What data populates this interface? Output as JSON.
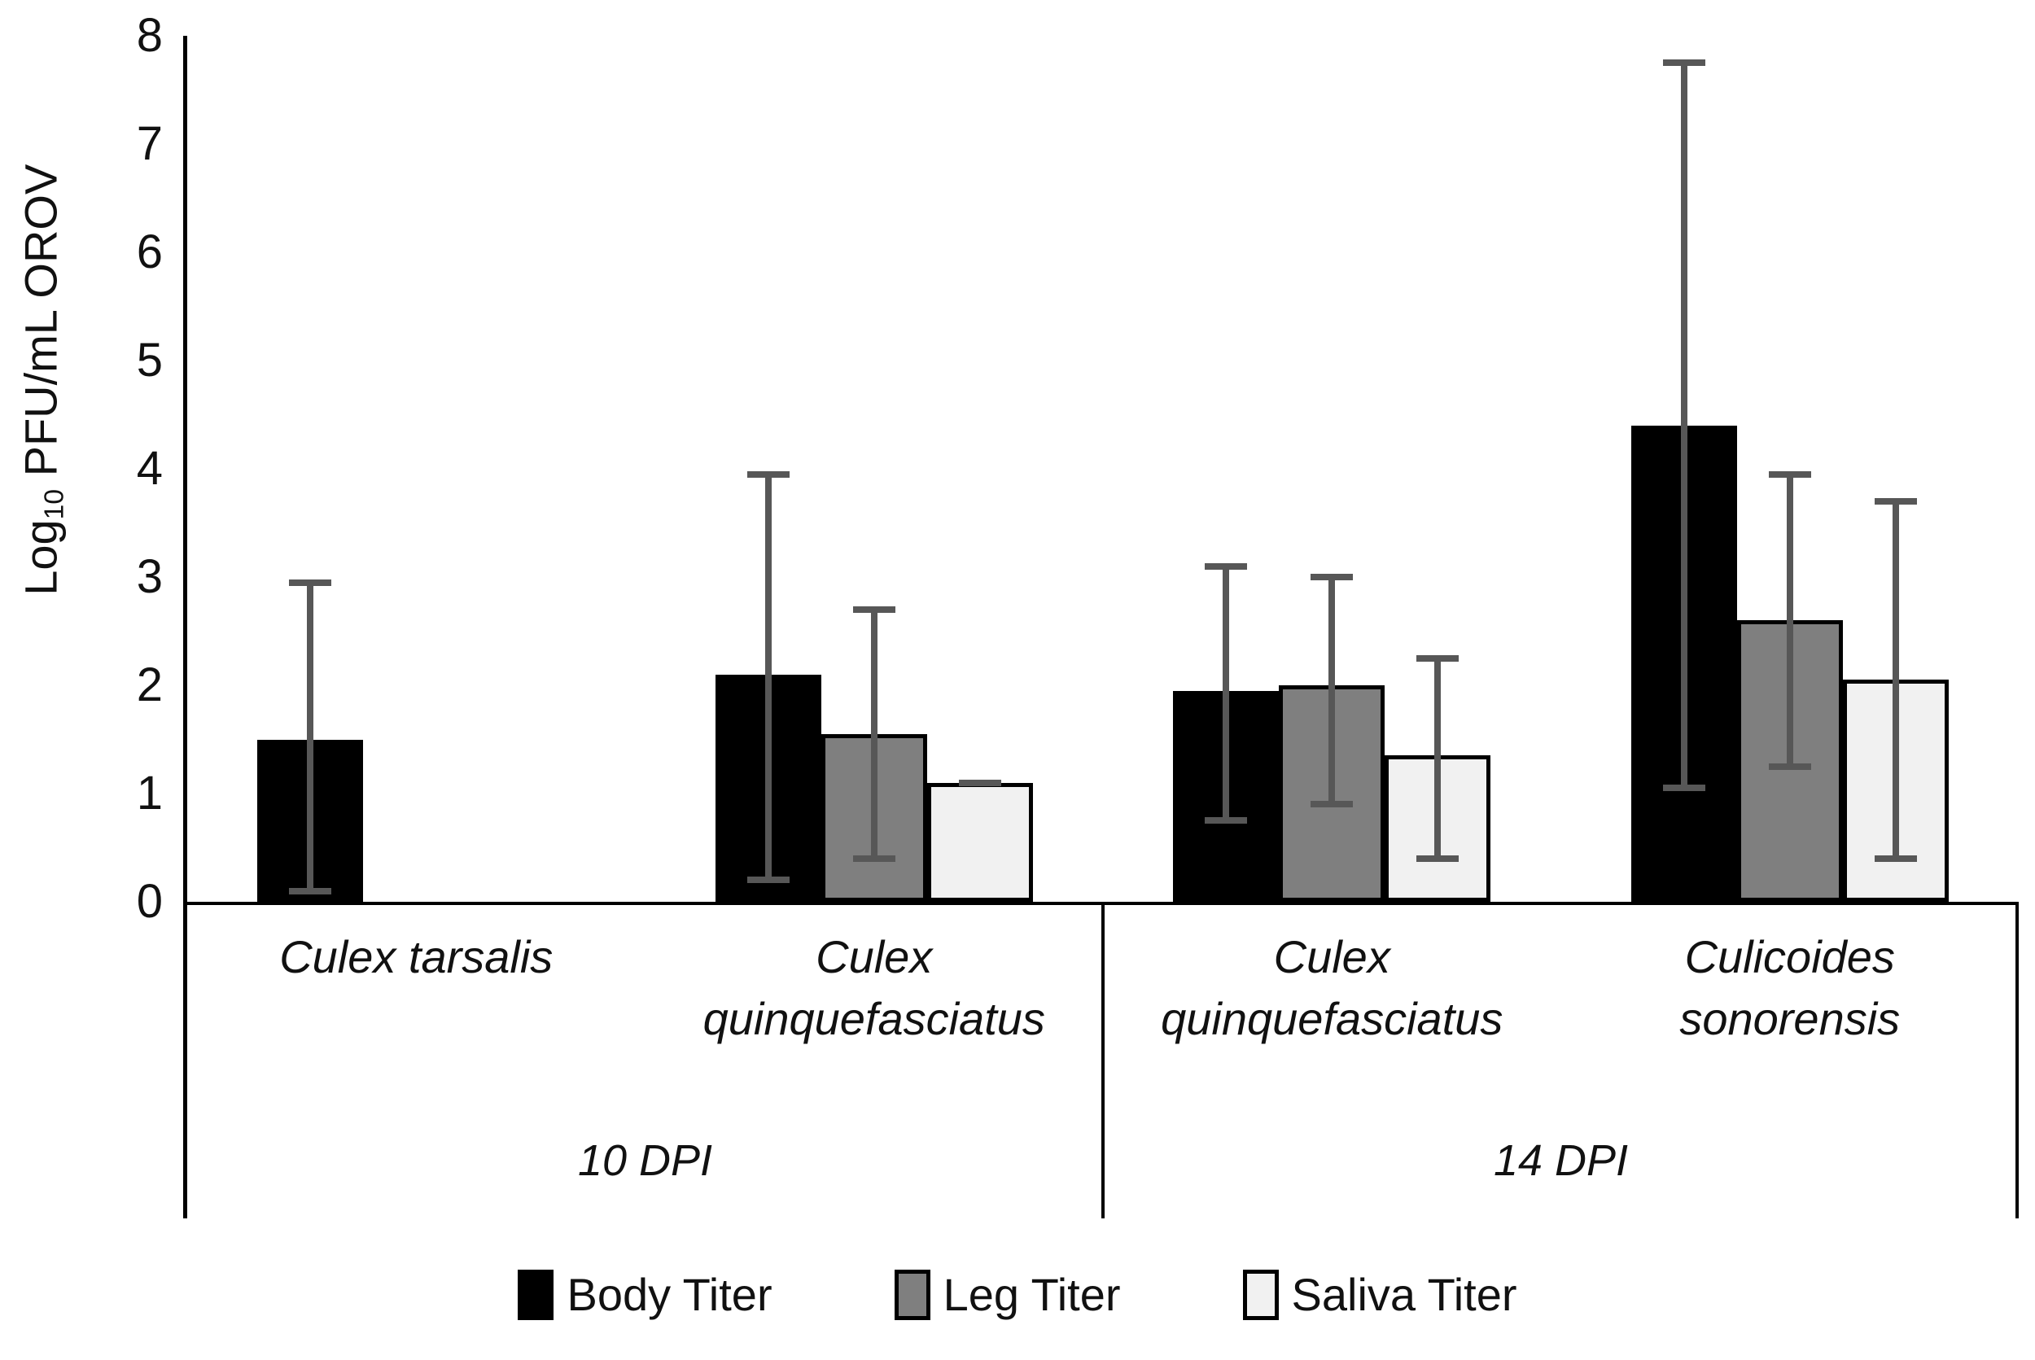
{
  "figure": {
    "y_axis_title": {
      "pre": "Log",
      "sub": "10",
      "post": " PFU/mL OROV"
    }
  },
  "chart_data": {
    "type": "bar",
    "title": "",
    "ylabel": "Log10 PFU/mL OROV",
    "ylim": [
      0,
      8
    ],
    "yticks": [
      0,
      1,
      2,
      3,
      4,
      5,
      6,
      7,
      8
    ],
    "grid": false,
    "legend_position": "bottom",
    "error_bar_color": "#575757",
    "group_labels": [
      "10 DPI",
      "14 DPI"
    ],
    "groups": [
      {
        "label": "10 DPI",
        "category_indexes": [
          0,
          1
        ]
      },
      {
        "label": "14 DPI",
        "category_indexes": [
          2,
          3
        ]
      }
    ],
    "categories": [
      {
        "line1": "Culex tarsalis",
        "line2": "",
        "group": "10 DPI"
      },
      {
        "line1": "Culex",
        "line2": "quinquefasciatus",
        "group": "10 DPI"
      },
      {
        "line1": "Culex",
        "line2": "quinquefasciatus",
        "group": "14 DPI"
      },
      {
        "line1": "Culicoides",
        "line2": "sonorensis",
        "group": "14 DPI"
      }
    ],
    "series": [
      {
        "name": "Body Titer",
        "color": "#000000",
        "values": [
          1.5,
          2.1,
          1.95,
          4.4
        ],
        "error_low": [
          0.1,
          0.2,
          0.75,
          1.05
        ],
        "error_high": [
          2.95,
          3.95,
          3.1,
          7.75
        ]
      },
      {
        "name": "Leg Titer",
        "color": "#7f7f7f",
        "values": [
          null,
          1.55,
          2.0,
          2.6
        ],
        "error_low": [
          null,
          0.4,
          0.9,
          1.25
        ],
        "error_high": [
          null,
          2.7,
          3.0,
          3.95
        ]
      },
      {
        "name": "Saliva Titer",
        "color": "#f1f1f1",
        "values": [
          null,
          1.1,
          1.35,
          2.05
        ],
        "error_low": [
          null,
          1.1,
          0.4,
          0.4
        ],
        "error_high": [
          null,
          1.1,
          2.25,
          3.7
        ]
      }
    ]
  }
}
